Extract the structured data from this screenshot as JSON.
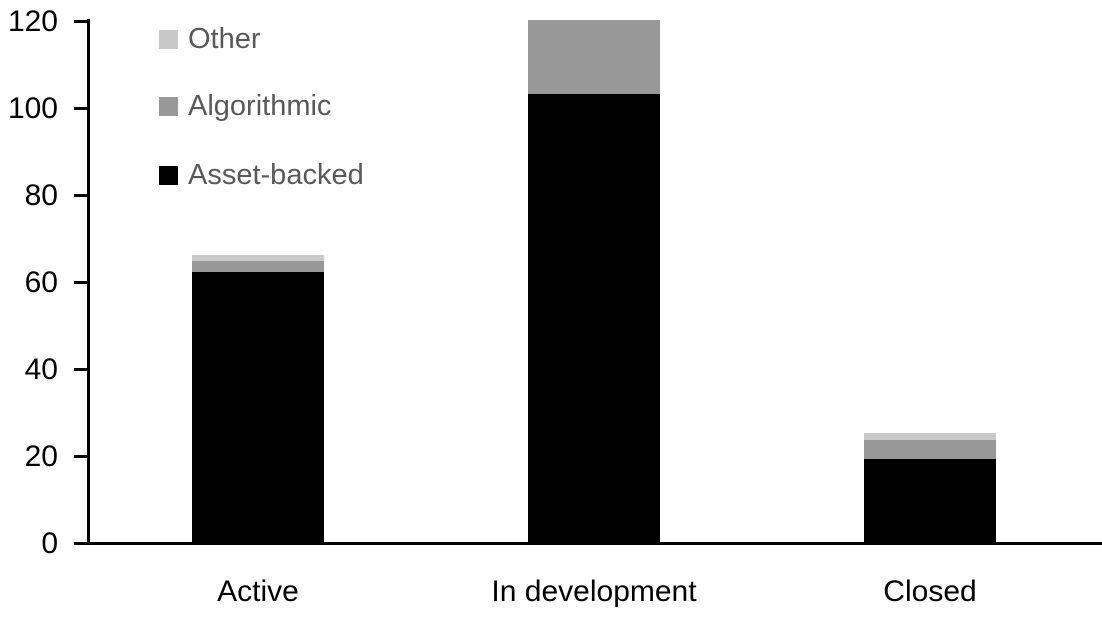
{
  "chart_data": {
    "type": "bar",
    "stacked": true,
    "title": "",
    "xlabel": "",
    "ylabel": "",
    "categories": [
      "Active",
      "In development",
      "Closed"
    ],
    "series": [
      {
        "name": "Asset-backed",
        "color": "#000000",
        "values": [
          62,
          103,
          19
        ]
      },
      {
        "name": "Algorithmic",
        "color": "#989898",
        "values": [
          2.5,
          17,
          4.5
        ]
      },
      {
        "name": "Other",
        "color": "#c8c8c8",
        "values": [
          1.5,
          0,
          1.5
        ]
      }
    ],
    "totals": [
      66,
      120,
      25
    ],
    "ylim": [
      0,
      120
    ],
    "yticks": [
      0,
      20,
      40,
      60,
      80,
      100,
      120
    ],
    "grid": false,
    "legend_position": "top-left-inside",
    "axis_color": "#000000"
  },
  "legend": {
    "text_color": "#595959",
    "items": [
      {
        "label": "Other",
        "color": "#c8c8c8"
      },
      {
        "label": "Algorithmic",
        "color": "#989898"
      },
      {
        "label": "Asset-backed",
        "color": "#000000"
      }
    ]
  }
}
